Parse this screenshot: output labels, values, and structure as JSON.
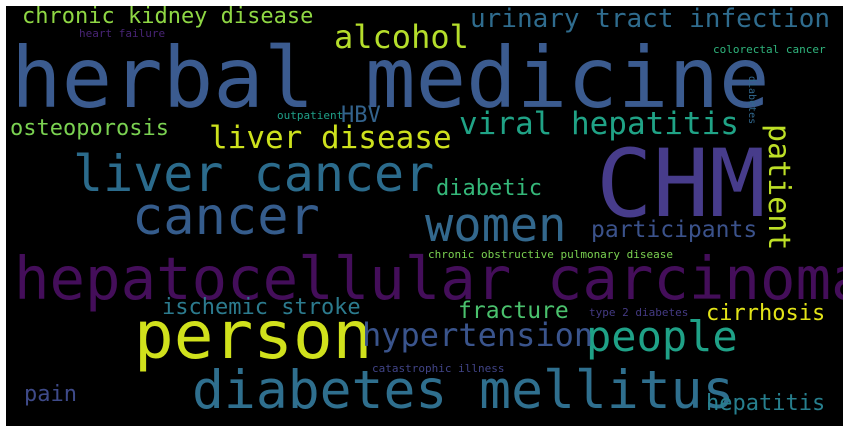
{
  "word_cloud": {
    "words": [
      {
        "key": "herbal_medicine",
        "text": "herbal medicine",
        "color": "#3b5b8f"
      },
      {
        "key": "chm",
        "text": "CHM",
        "color": "#473c8b"
      },
      {
        "key": "hepatocellular_carcinoma",
        "text": "hepatocellular carcinoma",
        "color": "#440e5a"
      },
      {
        "key": "person",
        "text": "person",
        "color": "#d0e11c"
      },
      {
        "key": "diabetes_mellitus",
        "text": "diabetes mellitus",
        "color": "#2f6f8e"
      },
      {
        "key": "liver_cancer",
        "text": "liver cancer",
        "color": "#2b6b8c"
      },
      {
        "key": "cancer",
        "text": "cancer",
        "color": "#355c8c"
      },
      {
        "key": "women",
        "text": "women",
        "color": "#33688d"
      },
      {
        "key": "people",
        "text": "people",
        "color": "#1fa187"
      },
      {
        "key": "hypertension",
        "text": "hypertension",
        "color": "#3a548c"
      },
      {
        "key": "liver_disease",
        "text": "liver disease",
        "color": "#cde11d"
      },
      {
        "key": "viral_hepatitis",
        "text": "viral hepatitis",
        "color": "#20a386"
      },
      {
        "key": "alcohol",
        "text": "alcohol",
        "color": "#b5de2b"
      },
      {
        "key": "urinary_tract_infection",
        "text": "urinary tract infection",
        "color": "#2f6c8e"
      },
      {
        "key": "chronic_kidney_disease",
        "text": "chronic kidney disease",
        "color": "#8fd744"
      },
      {
        "key": "patient",
        "text": "patient",
        "color": "#bddf26"
      },
      {
        "key": "osteoporosis",
        "text": "osteoporosis",
        "color": "#7ad151"
      },
      {
        "key": "participants",
        "text": "participants",
        "color": "#3b528b"
      },
      {
        "key": "diabetic",
        "text": "diabetic",
        "color": "#35b779"
      },
      {
        "key": "fracture",
        "text": "fracture",
        "color": "#4ac16d"
      },
      {
        "key": "ischemic_stroke",
        "text": "ischemic stroke",
        "color": "#2c7b8e"
      },
      {
        "key": "cirrhosis",
        "text": "cirrhosis",
        "color": "#e2e418"
      },
      {
        "key": "hepatitis",
        "text": "hepatitis",
        "color": "#277f8e"
      },
      {
        "key": "pain",
        "text": "pain",
        "color": "#3e4a89"
      },
      {
        "key": "hbv",
        "text": "HBV",
        "color": "#33638d"
      },
      {
        "key": "chronic_obstructive_pulmonary_disease",
        "text": "chronic obstructive pulmonary disease",
        "color": "#7ad151"
      },
      {
        "key": "heart_failure",
        "text": "heart failure",
        "color": "#482475"
      },
      {
        "key": "colorectal_cancer",
        "text": "colorectal cancer",
        "color": "#2fb47c"
      },
      {
        "key": "outpatient",
        "text": "outpatient",
        "color": "#1fa088"
      },
      {
        "key": "diabetes",
        "text": "diabetes",
        "color": "#31688e"
      },
      {
        "key": "type_2_diabetes",
        "text": "type 2 diabetes",
        "color": "#443a83"
      },
      {
        "key": "catastrophic_illness",
        "text": "catastrophic illness",
        "color": "#414487"
      }
    ]
  }
}
